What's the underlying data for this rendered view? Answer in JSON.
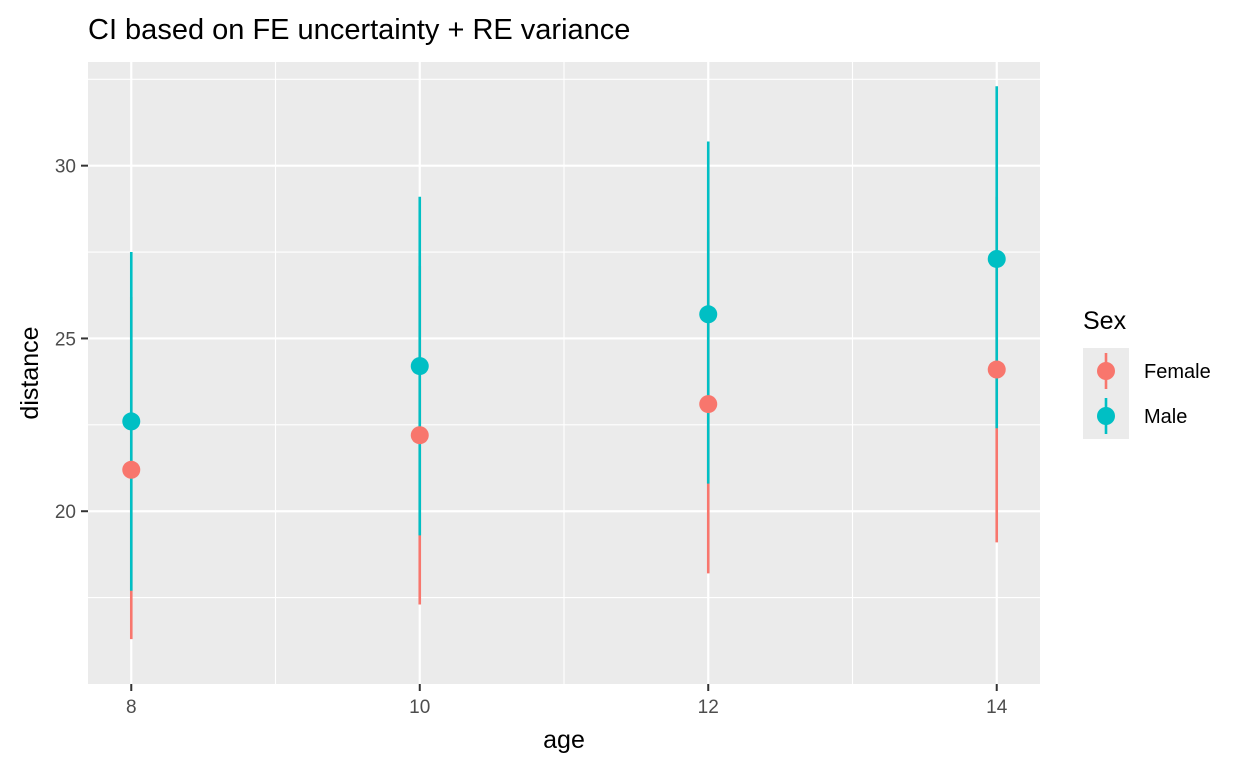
{
  "colors": {
    "panel_background": "#EBEBEB",
    "grid": "#FFFFFF",
    "text_dark": "#000000",
    "tick_text": "#4D4D4D",
    "tick_mark": "#333333"
  },
  "chart_data": {
    "type": "pointrange",
    "title": "CI based on FE uncertainty + RE variance",
    "xlabel": "age",
    "ylabel": "distance",
    "x_ticks": [
      8,
      10,
      12,
      14
    ],
    "x_minor_ticks": [
      9,
      11,
      13
    ],
    "y_ticks": [
      20,
      25,
      30
    ],
    "y_minor_ticks": [
      17.5,
      22.5,
      27.5,
      32.5
    ],
    "xlim": [
      7.7,
      14.3
    ],
    "ylim": [
      15.0,
      33.0
    ],
    "grid": true,
    "legend": {
      "title": "Sex",
      "position": "right",
      "entries": [
        "Female",
        "Male"
      ]
    },
    "series": [
      {
        "name": "Female",
        "color": "#F8766D",
        "points": [
          {
            "x": 8,
            "y": 21.2,
            "lower": 16.3,
            "upper": 26.2
          },
          {
            "x": 10,
            "y": 22.2,
            "lower": 17.3,
            "upper": 27.1
          },
          {
            "x": 12,
            "y": 23.1,
            "lower": 18.2,
            "upper": 28.1
          },
          {
            "x": 14,
            "y": 24.1,
            "lower": 19.1,
            "upper": 29.1
          }
        ]
      },
      {
        "name": "Male",
        "color": "#00BFC4",
        "points": [
          {
            "x": 8,
            "y": 22.6,
            "lower": 17.7,
            "upper": 27.5
          },
          {
            "x": 10,
            "y": 24.2,
            "lower": 19.3,
            "upper": 29.1
          },
          {
            "x": 12,
            "y": 25.7,
            "lower": 20.8,
            "upper": 30.7
          },
          {
            "x": 14,
            "y": 27.3,
            "lower": 22.4,
            "upper": 32.3
          }
        ]
      }
    ]
  }
}
